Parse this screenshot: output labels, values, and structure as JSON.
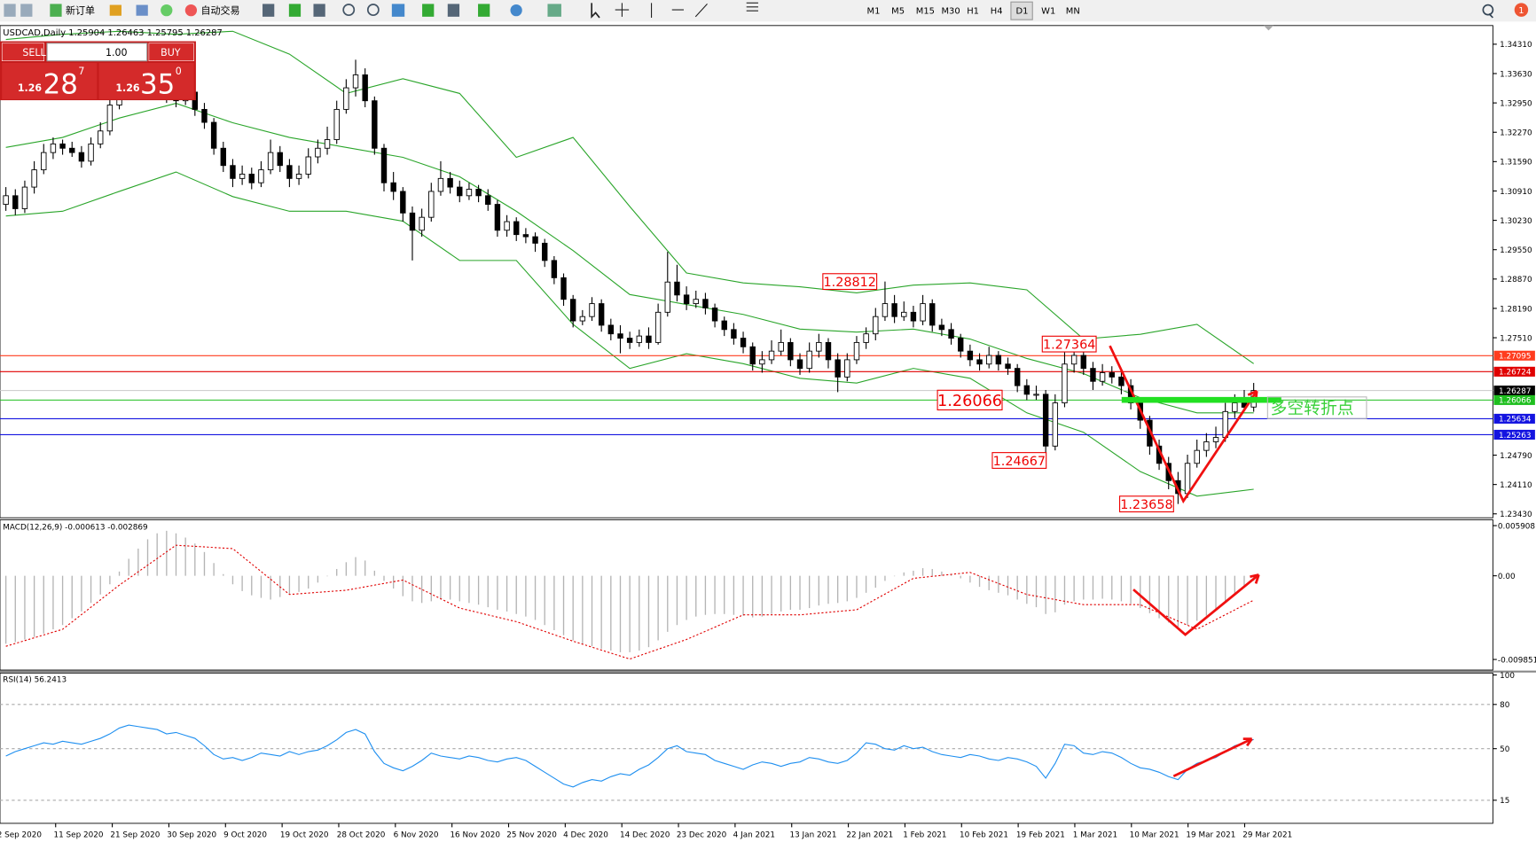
{
  "toolbar": {
    "new_order": "新订单",
    "auto_trading": "自动交易",
    "timeframes": [
      "M1",
      "M5",
      "M15",
      "M30",
      "H1",
      "H4",
      "D1",
      "W1",
      "MN"
    ],
    "active_timeframe": "D1",
    "notifications": 1
  },
  "trade_panel": {
    "sell": "SELL",
    "buy": "BUY",
    "lots": "1.00",
    "bid": {
      "big_figure": "1.26",
      "pips": "28",
      "fraction": "7"
    },
    "ask": {
      "big_figure": "1.26",
      "pips": "35",
      "fraction": "0"
    }
  },
  "chart": {
    "title": "USDCAD,Daily 1.25904 1.26463 1.25795 1.26287",
    "ylim": [
      1.23339,
      1.34697
    ],
    "yticks": [
      {
        "value": 1.3431,
        "label": "1.34310"
      },
      {
        "value": 1.3363,
        "label": "1.33630"
      },
      {
        "value": 1.3295,
        "label": "1.32950"
      },
      {
        "value": 1.3227,
        "label": "1.32270"
      },
      {
        "value": 1.3159,
        "label": "1.31590"
      },
      {
        "value": 1.3091,
        "label": "1.30910"
      },
      {
        "value": 1.3023,
        "label": "1.30230"
      },
      {
        "value": 1.2955,
        "label": "1.29550"
      },
      {
        "value": 1.2887,
        "label": "1.28870"
      },
      {
        "value": 1.2819,
        "label": "1.28190"
      },
      {
        "value": 1.2751,
        "label": "1.27510"
      },
      {
        "value": 1.2479,
        "label": "1.24790"
      },
      {
        "value": 1.2411,
        "label": "1.24110"
      },
      {
        "value": 1.2343,
        "label": "1.23430"
      }
    ],
    "candles": [
      [
        1.306,
        1.31,
        1.3045,
        1.308
      ],
      [
        1.308,
        1.3095,
        1.3035,
        1.305
      ],
      [
        1.305,
        1.3115,
        1.304,
        1.31
      ],
      [
        1.31,
        1.316,
        1.3085,
        1.314
      ],
      [
        1.314,
        1.32,
        1.313,
        1.318
      ],
      [
        1.318,
        1.3215,
        1.3165,
        1.32
      ],
      [
        1.32,
        1.321,
        1.3175,
        1.319
      ],
      [
        1.319,
        1.3205,
        1.317,
        1.318
      ],
      [
        1.318,
        1.3195,
        1.3145,
        1.316
      ],
      [
        1.316,
        1.3215,
        1.315,
        1.32
      ],
      [
        1.32,
        1.325,
        1.319,
        1.323
      ],
      [
        1.323,
        1.331,
        1.322,
        1.329
      ],
      [
        1.329,
        1.336,
        1.328,
        1.334
      ],
      [
        1.334,
        1.3365,
        1.3305,
        1.332
      ],
      [
        1.332,
        1.337,
        1.331,
        1.335
      ],
      [
        1.335,
        1.338,
        1.3335,
        1.336
      ],
      [
        1.336,
        1.3375,
        1.3315,
        1.333
      ],
      [
        1.333,
        1.3345,
        1.3295,
        1.331
      ],
      [
        1.331,
        1.3325,
        1.3285,
        1.33
      ],
      [
        1.33,
        1.334,
        1.329,
        1.332
      ],
      [
        1.332,
        1.333,
        1.3265,
        1.328
      ],
      [
        1.328,
        1.3295,
        1.3235,
        1.325
      ],
      [
        1.325,
        1.326,
        1.3175,
        1.319
      ],
      [
        1.319,
        1.3205,
        1.3135,
        1.315
      ],
      [
        1.315,
        1.3165,
        1.31,
        1.312
      ],
      [
        1.312,
        1.315,
        1.3105,
        1.313
      ],
      [
        1.313,
        1.3145,
        1.3095,
        1.311
      ],
      [
        1.311,
        1.316,
        1.31,
        1.314
      ],
      [
        1.314,
        1.321,
        1.313,
        1.318
      ],
      [
        1.318,
        1.3195,
        1.3135,
        1.315
      ],
      [
        1.315,
        1.3165,
        1.31,
        1.312
      ],
      [
        1.312,
        1.315,
        1.3105,
        1.313
      ],
      [
        1.313,
        1.319,
        1.312,
        1.317
      ],
      [
        1.317,
        1.321,
        1.3155,
        1.319
      ],
      [
        1.319,
        1.324,
        1.3175,
        1.321
      ],
      [
        1.321,
        1.33,
        1.32,
        1.328
      ],
      [
        1.328,
        1.335,
        1.327,
        1.333
      ],
      [
        1.333,
        1.3395,
        1.331,
        1.336
      ],
      [
        1.336,
        1.3375,
        1.3285,
        1.33
      ],
      [
        1.33,
        1.331,
        1.3175,
        1.319
      ],
      [
        1.319,
        1.32,
        1.309,
        1.311
      ],
      [
        1.311,
        1.3135,
        1.307,
        1.309
      ],
      [
        1.309,
        1.31,
        1.302,
        1.304
      ],
      [
        1.304,
        1.3055,
        1.293,
        1.3
      ],
      [
        1.3,
        1.305,
        1.2985,
        1.303
      ],
      [
        1.303,
        1.311,
        1.302,
        1.309
      ],
      [
        1.309,
        1.316,
        1.308,
        1.312
      ],
      [
        1.312,
        1.3135,
        1.3085,
        1.31
      ],
      [
        1.31,
        1.3115,
        1.3065,
        1.308
      ],
      [
        1.308,
        1.311,
        1.307,
        1.3095
      ],
      [
        1.3095,
        1.3105,
        1.3065,
        1.308
      ],
      [
        1.308,
        1.3095,
        1.3045,
        1.306
      ],
      [
        1.306,
        1.307,
        1.2985,
        1.3
      ],
      [
        1.3,
        1.3035,
        1.2985,
        1.302
      ],
      [
        1.302,
        1.303,
        1.2975,
        1.299
      ],
      [
        1.299,
        1.3005,
        1.297,
        1.2985
      ],
      [
        1.2985,
        1.2995,
        1.295,
        1.297
      ],
      [
        1.297,
        1.298,
        1.2915,
        1.293
      ],
      [
        1.293,
        1.294,
        1.2875,
        1.289
      ],
      [
        1.289,
        1.29,
        1.2825,
        1.284
      ],
      [
        1.284,
        1.285,
        1.2775,
        1.279
      ],
      [
        1.279,
        1.2815,
        1.278,
        1.28
      ],
      [
        1.28,
        1.2845,
        1.279,
        1.283
      ],
      [
        1.283,
        1.284,
        1.2765,
        1.278
      ],
      [
        1.278,
        1.2795,
        1.2745,
        1.276
      ],
      [
        1.276,
        1.278,
        1.2715,
        1.275
      ],
      [
        1.275,
        1.2765,
        1.2725,
        1.274
      ],
      [
        1.274,
        1.277,
        1.273,
        1.2755
      ],
      [
        1.2755,
        1.2775,
        1.2725,
        1.274
      ],
      [
        1.274,
        1.283,
        1.2735,
        1.281
      ],
      [
        1.281,
        1.295,
        1.28,
        1.288
      ],
      [
        1.288,
        1.292,
        1.2835,
        1.285
      ],
      [
        1.285,
        1.287,
        1.2815,
        1.283
      ],
      [
        1.283,
        1.286,
        1.282,
        1.284
      ],
      [
        1.284,
        1.2855,
        1.2805,
        1.282
      ],
      [
        1.282,
        1.283,
        1.2775,
        1.279
      ],
      [
        1.279,
        1.28,
        1.2755,
        1.277
      ],
      [
        1.277,
        1.2785,
        1.2735,
        1.275
      ],
      [
        1.275,
        1.2765,
        1.2715,
        1.273
      ],
      [
        1.273,
        1.274,
        1.2675,
        1.269
      ],
      [
        1.269,
        1.272,
        1.267,
        1.27
      ],
      [
        1.27,
        1.2745,
        1.269,
        1.272
      ],
      [
        1.272,
        1.277,
        1.271,
        1.274
      ],
      [
        1.274,
        1.275,
        1.2685,
        1.27
      ],
      [
        1.27,
        1.2715,
        1.2665,
        1.268
      ],
      [
        1.268,
        1.274,
        1.267,
        1.272
      ],
      [
        1.272,
        1.276,
        1.2705,
        1.274
      ],
      [
        1.274,
        1.275,
        1.268,
        1.27
      ],
      [
        1.27,
        1.2715,
        1.2625,
        1.266
      ],
      [
        1.266,
        1.2715,
        1.265,
        1.27
      ],
      [
        1.27,
        1.2755,
        1.269,
        1.274
      ],
      [
        1.274,
        1.2775,
        1.2725,
        1.276
      ],
      [
        1.276,
        1.282,
        1.2745,
        1.28
      ],
      [
        1.28,
        1.28812,
        1.279,
        1.283
      ],
      [
        1.283,
        1.285,
        1.2785,
        1.28
      ],
      [
        1.28,
        1.2835,
        1.279,
        1.281
      ],
      [
        1.281,
        1.2825,
        1.2775,
        1.279
      ],
      [
        1.279,
        1.285,
        1.278,
        1.283
      ],
      [
        1.283,
        1.284,
        1.2765,
        1.278
      ],
      [
        1.278,
        1.2795,
        1.2755,
        1.277
      ],
      [
        1.277,
        1.2785,
        1.2735,
        1.275
      ],
      [
        1.275,
        1.276,
        1.2705,
        1.272
      ],
      [
        1.272,
        1.2735,
        1.2685,
        1.27
      ],
      [
        1.27,
        1.2715,
        1.2675,
        1.269
      ],
      [
        1.269,
        1.273,
        1.268,
        1.271
      ],
      [
        1.271,
        1.272,
        1.2675,
        1.269
      ],
      [
        1.269,
        1.2705,
        1.2665,
        1.268
      ],
      [
        1.268,
        1.269,
        1.2625,
        1.264
      ],
      [
        1.264,
        1.2655,
        1.26066,
        1.262
      ],
      [
        1.262,
        1.264,
        1.2607,
        1.262
      ],
      [
        1.262,
        1.263,
        1.24667,
        1.25
      ],
      [
        1.25,
        1.262,
        1.249,
        1.26
      ],
      [
        1.26,
        1.27364,
        1.259,
        1.269
      ],
      [
        1.269,
        1.2725,
        1.267,
        1.271
      ],
      [
        1.271,
        1.272,
        1.2665,
        1.268
      ],
      [
        1.268,
        1.2695,
        1.263,
        1.265
      ],
      [
        1.265,
        1.269,
        1.264,
        1.267
      ],
      [
        1.267,
        1.2685,
        1.2645,
        1.266
      ],
      [
        1.266,
        1.2675,
        1.262,
        1.264
      ],
      [
        1.264,
        1.2655,
        1.2585,
        1.26
      ],
      [
        1.26,
        1.261,
        1.254,
        1.256
      ],
      [
        1.256,
        1.257,
        1.248,
        1.25
      ],
      [
        1.25,
        1.2515,
        1.2445,
        1.246
      ],
      [
        1.246,
        1.2475,
        1.24,
        1.242
      ],
      [
        1.242,
        1.244,
        1.23658,
        1.239
      ],
      [
        1.239,
        1.248,
        1.238,
        1.246
      ],
      [
        1.246,
        1.2515,
        1.245,
        1.249
      ],
      [
        1.249,
        1.253,
        1.2475,
        1.251
      ],
      [
        1.251,
        1.2545,
        1.2495,
        1.252
      ],
      [
        1.252,
        1.26,
        1.251,
        1.258
      ],
      [
        1.258,
        1.262,
        1.2565,
        1.26
      ],
      [
        1.26,
        1.263,
        1.258,
        1.259
      ],
      [
        1.25904,
        1.26463,
        1.25795,
        1.26287
      ]
    ],
    "bollinger": {
      "color": "#2aa52a",
      "x": [
        0,
        6,
        12,
        18,
        24,
        30,
        36,
        42,
        48,
        54,
        60,
        66,
        72,
        78,
        84,
        90,
        96,
        102,
        108,
        114,
        120,
        126,
        132
      ],
      "upper": [
        1.3442,
        1.3454,
        1.3461,
        1.3454,
        1.3461,
        1.3408,
        1.3317,
        1.3351,
        1.3317,
        1.3169,
        1.3215,
        1.3055,
        1.2901,
        1.2878,
        1.2869,
        1.2855,
        1.2873,
        1.2878,
        1.2862,
        1.2748,
        1.2759,
        1.2782,
        1.2691
      ],
      "middle": [
        1.3192,
        1.3215,
        1.326,
        1.3294,
        1.3249,
        1.3215,
        1.3192,
        1.3169,
        1.3124,
        1.3044,
        1.2953,
        1.2851,
        1.2828,
        1.2805,
        1.2771,
        1.2764,
        1.2771,
        1.2748,
        1.2703,
        1.2668,
        1.2612,
        1.2577,
        1.2577
      ],
      "lower": [
        1.3033,
        1.3044,
        1.309,
        1.3135,
        1.3078,
        1.3044,
        1.3044,
        1.3021,
        1.293,
        1.293,
        1.2782,
        1.268,
        1.2714,
        1.2691,
        1.2657,
        1.2646,
        1.268,
        1.2657,
        1.2577,
        1.2532,
        1.2441,
        1.2384,
        1.24
      ]
    },
    "levels": [
      {
        "value": 1.27095,
        "label": "1.27095",
        "color": "#ff3c1e"
      },
      {
        "value": 1.26724,
        "label": "1.26724",
        "color": "#e00000"
      },
      {
        "value": 1.26287,
        "label": "1.26287",
        "color": "#c8c8c8"
      },
      {
        "value": 1.26066,
        "label": "1.26066",
        "color": "#1fbf1f"
      },
      {
        "value": 1.25634,
        "label": "1.25634",
        "color": "#1414e0"
      },
      {
        "value": 1.25263,
        "label": "1.25263",
        "color": "#1414e0"
      }
    ],
    "annotations": [
      {
        "value": 1.28812,
        "label": "1.28812"
      },
      {
        "value": 1.27364,
        "label": "1.27364"
      },
      {
        "value": 1.26066,
        "label": "1.26066"
      },
      {
        "value": 1.24667,
        "label": "1.24667"
      },
      {
        "value": 1.23658,
        "label": "1.23658"
      }
    ],
    "pivot_text": "多空转折点",
    "x_labels": [
      "2 Sep 2020",
      "11 Sep 2020",
      "21 Sep 2020",
      "30 Sep 2020",
      "9 Oct 2020",
      "19 Oct 2020",
      "28 Oct 2020",
      "6 Nov 2020",
      "16 Nov 2020",
      "25 Nov 2020",
      "4 Dec 2020",
      "14 Dec 2020",
      "23 Dec 2020",
      "4 Jan 2021",
      "13 Jan 2021",
      "22 Jan 2021",
      "1 Feb 2021",
      "10 Feb 2021",
      "19 Feb 2021",
      "1 Mar 2021",
      "10 Mar 2021",
      "19 Mar 2021",
      "29 Mar 2021"
    ]
  },
  "macd": {
    "label": "MACD(12,26,9) -0.000613 -0.002869",
    "ylim": [
      -0.0111,
      0.0066
    ],
    "yticks": [
      {
        "value": 0.005908,
        "label": "0.005908"
      },
      {
        "value": 0,
        "label": "0.00"
      },
      {
        "value": -0.009851,
        "label": "-0.009851"
      }
    ],
    "histogram": [
      -0.008,
      -0.0078,
      -0.0075,
      -0.0072,
      -0.0068,
      -0.0063,
      -0.0058,
      -0.005,
      -0.0042,
      -0.0032,
      -0.0022,
      -0.001,
      0.0005,
      0.002,
      0.0032,
      0.0043,
      0.005,
      0.0053,
      0.005,
      0.0045,
      0.0038,
      0.0028,
      0.0015,
      0.0002,
      -0.001,
      -0.0018,
      -0.0023,
      -0.0026,
      -0.0028,
      -0.0025,
      -0.0022,
      -0.0019,
      -0.0015,
      -0.0008,
      0,
      0.0008,
      0.0016,
      0.0022,
      0.0018,
      0.0006,
      -0.0006,
      -0.0015,
      -0.0024,
      -0.003,
      -0.0032,
      -0.003,
      -0.0028,
      -0.0028,
      -0.003,
      -0.0032,
      -0.0034,
      -0.0037,
      -0.004,
      -0.0042,
      -0.0045,
      -0.0048,
      -0.0052,
      -0.0058,
      -0.0064,
      -0.007,
      -0.0076,
      -0.008,
      -0.0083,
      -0.0086,
      -0.0088,
      -0.009,
      -0.009,
      -0.0088,
      -0.0084,
      -0.0076,
      -0.0066,
      -0.0058,
      -0.0052,
      -0.0048,
      -0.0046,
      -0.0045,
      -0.0045,
      -0.0046,
      -0.0047,
      -0.0049,
      -0.0048,
      -0.0045,
      -0.0042,
      -0.004,
      -0.004,
      -0.0038,
      -0.0035,
      -0.0033,
      -0.0032,
      -0.003,
      -0.0026,
      -0.002,
      -0.0014,
      -0.0006,
      0,
      0.0004,
      0.0006,
      0.0009,
      0.0008,
      0.0005,
      0.0002,
      -0.0003,
      -0.0008,
      -0.0013,
      -0.0017,
      -0.002,
      -0.0023,
      -0.0028,
      -0.0033,
      -0.0037,
      -0.0045,
      -0.0043,
      -0.0034,
      -0.003,
      -0.0028,
      -0.0028,
      -0.0027,
      -0.0028,
      -0.003,
      -0.0033,
      -0.0038,
      -0.0044,
      -0.005,
      -0.0055,
      -0.006,
      -0.0058,
      -0.0053,
      -0.0047,
      -0.004,
      -0.0032,
      -0.0023,
      -0.0014,
      -0.000613
    ],
    "signal": {
      "color": "#e00000",
      "x": [
        0,
        6,
        12,
        18,
        24,
        30,
        36,
        42,
        48,
        54,
        60,
        66,
        72,
        78,
        84,
        90,
        96,
        102,
        108,
        114,
        120,
        126,
        132
      ],
      "values": [
        -0.0083,
        -0.0063,
        -0.0011,
        0.0036,
        0.0032,
        -0.0022,
        -0.0017,
        -0.0005,
        -0.0038,
        -0.0054,
        -0.0077,
        -0.0098,
        -0.0075,
        -0.0046,
        -0.0046,
        -0.004,
        -0.0003,
        0.0004,
        -0.0022,
        -0.0034,
        -0.0034,
        -0.0063,
        -0.002869
      ]
    }
  },
  "rsi": {
    "label": "RSI(14) 56.2413",
    "color": "#1e8ff0",
    "ylim": [
      0,
      100
    ],
    "yticks": [
      100,
      80,
      50,
      15
    ],
    "values": [
      45,
      48,
      50,
      52,
      54,
      53,
      55,
      54,
      53,
      55,
      57,
      60,
      64,
      66,
      65,
      64,
      63,
      60,
      61,
      59,
      57,
      52,
      46,
      43,
      44,
      42,
      44,
      47,
      46,
      45,
      48,
      46,
      48,
      49,
      52,
      56,
      61,
      63,
      60,
      48,
      40,
      37,
      35,
      38,
      42,
      47,
      45,
      44,
      43,
      45,
      44,
      42,
      41,
      43,
      44,
      42,
      38,
      34,
      30,
      26,
      24,
      27,
      29,
      28,
      31,
      33,
      32,
      36,
      39,
      44,
      50,
      52,
      48,
      47,
      46,
      42,
      40,
      38,
      36,
      39,
      41,
      40,
      38,
      40,
      41,
      44,
      43,
      41,
      40,
      42,
      47,
      54,
      53,
      50,
      49,
      52,
      50,
      51,
      48,
      46,
      45,
      44,
      46,
      45,
      43,
      42,
      44,
      43,
      41,
      38,
      30,
      40,
      53,
      52,
      47,
      46,
      48,
      47,
      44,
      40,
      37,
      36,
      34,
      31,
      29,
      36,
      40,
      42,
      44,
      48,
      52,
      54,
      56.2413
    ]
  }
}
